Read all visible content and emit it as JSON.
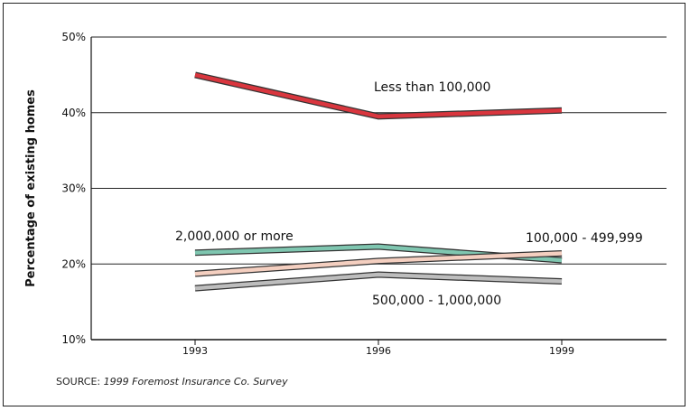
{
  "chart_data": {
    "type": "line",
    "x": [
      "1993",
      "1996",
      "1999"
    ],
    "ylabel": "Percentage of existing homes",
    "ylim": [
      10,
      50
    ],
    "yticks": [
      "10%",
      "20%",
      "30%",
      "40%",
      "50%"
    ],
    "grid": true,
    "series": [
      {
        "name": "Less than 100,000",
        "values": [
          45,
          39.5,
          40.3
        ],
        "color": "#d9363e",
        "label_pos": "above-right"
      },
      {
        "name": "2,000,000 or more",
        "values": [
          21.5,
          22.3,
          20.5
        ],
        "color": "#7fc6b0",
        "label_pos": "above-left"
      },
      {
        "name": "100,000 - 499,999",
        "values": [
          18.7,
          20.4,
          21.4
        ],
        "color": "#f4cfc0",
        "label_pos": "above-right"
      },
      {
        "name": "500,000 - 1,000,000",
        "values": [
          16.8,
          18.6,
          17.7
        ],
        "color": "#bdbdbd",
        "label_pos": "below"
      }
    ]
  },
  "source": {
    "prefix": "SOURCE: ",
    "text": "1999 Foremost Insurance Co. Survey"
  }
}
